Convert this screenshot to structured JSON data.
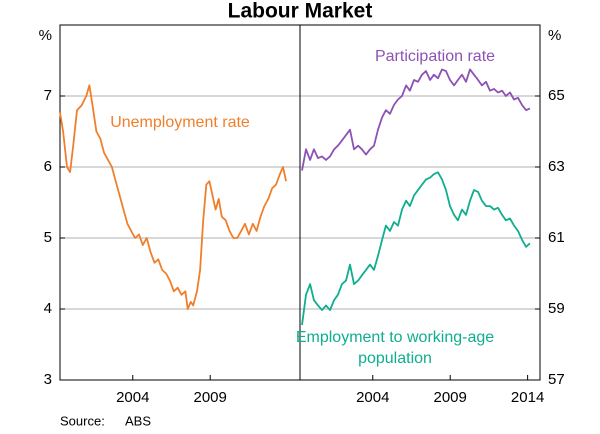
{
  "title": "Labour Market",
  "source_label": "Source:",
  "source": "ABS",
  "chart_data": [
    {
      "type": "line",
      "y_unit": "%",
      "xlim": [
        1999.3,
        2014.8
      ],
      "xticks": [
        2004,
        2009
      ],
      "ylim": [
        3,
        8
      ],
      "yticks": [
        3,
        4,
        5,
        6,
        7
      ],
      "grid": true,
      "axis_side": "left",
      "x": [
        1999.3,
        1999.5,
        1999.75,
        1999.95,
        2000.15,
        2000.4,
        2000.7,
        2001.0,
        2001.2,
        2001.4,
        2001.65,
        2001.9,
        2002.15,
        2002.4,
        2002.65,
        2002.9,
        2003.15,
        2003.4,
        2003.65,
        2003.9,
        2004.15,
        2004.4,
        2004.65,
        2004.9,
        2005.15,
        2005.4,
        2005.65,
        2005.9,
        2006.15,
        2006.4,
        2006.65,
        2006.9,
        2007.15,
        2007.4,
        2007.55,
        2007.75,
        2007.9,
        2008.15,
        2008.35,
        2008.55,
        2008.75,
        2008.95,
        2009.15,
        2009.35,
        2009.55,
        2009.75,
        2010.0,
        2010.25,
        2010.5,
        2010.75,
        2011.0,
        2011.25,
        2011.5,
        2011.75,
        2012.0,
        2012.25,
        2012.5,
        2012.75,
        2013.0,
        2013.25,
        2013.5,
        2013.7,
        2013.9
      ],
      "series": [
        {
          "name": "Unemployment rate",
          "color": "#f07f2c",
          "values": [
            6.77,
            6.5,
            6.0,
            5.93,
            6.3,
            6.8,
            6.87,
            7.0,
            7.15,
            6.87,
            6.5,
            6.4,
            6.2,
            6.1,
            6.0,
            5.8,
            5.6,
            5.4,
            5.2,
            5.1,
            5.0,
            5.05,
            4.9,
            5.0,
            4.8,
            4.65,
            4.7,
            4.55,
            4.5,
            4.4,
            4.25,
            4.3,
            4.2,
            4.25,
            4.0,
            4.1,
            4.05,
            4.25,
            4.55,
            5.25,
            5.75,
            5.8,
            5.6,
            5.4,
            5.55,
            5.3,
            5.25,
            5.1,
            5.0,
            5.0,
            5.1,
            5.2,
            5.05,
            5.2,
            5.1,
            5.3,
            5.45,
            5.55,
            5.7,
            5.75,
            5.9,
            6.0,
            5.8
          ]
        }
      ]
    },
    {
      "type": "line",
      "y_unit": "%",
      "xlim": [
        1999.3,
        2014.8
      ],
      "xticks": [
        2004,
        2009,
        2014
      ],
      "ylim": [
        57,
        67
      ],
      "yticks": [
        57,
        59,
        61,
        63,
        65
      ],
      "grid": true,
      "axis_side": "right",
      "x": [
        1999.43,
        1999.69,
        1999.95,
        2000.2,
        2000.46,
        2000.72,
        2000.98,
        2001.24,
        2001.5,
        2001.75,
        2002.01,
        2002.27,
        2002.53,
        2002.79,
        2003.05,
        2003.3,
        2003.56,
        2003.82,
        2004.08,
        2004.34,
        2004.6,
        2004.85,
        2005.11,
        2005.37,
        2005.63,
        2005.89,
        2006.15,
        2006.4,
        2006.66,
        2006.92,
        2007.18,
        2007.44,
        2007.7,
        2007.95,
        2008.21,
        2008.47,
        2008.73,
        2008.99,
        2009.25,
        2009.5,
        2009.76,
        2010.02,
        2010.28,
        2010.54,
        2010.8,
        2011.05,
        2011.31,
        2011.57,
        2011.83,
        2012.09,
        2012.35,
        2012.6,
        2012.86,
        2013.12,
        2013.38,
        2013.64,
        2013.9,
        2014.15
      ],
      "series": [
        {
          "name": "Participation rate",
          "color": "#8c52b5",
          "values": [
            62.9,
            63.5,
            63.2,
            63.5,
            63.25,
            63.3,
            63.2,
            63.3,
            63.5,
            63.6,
            63.75,
            63.9,
            64.05,
            63.5,
            63.6,
            63.5,
            63.35,
            63.5,
            63.6,
            64.05,
            64.4,
            64.6,
            64.5,
            64.75,
            64.9,
            65.0,
            65.3,
            65.15,
            65.45,
            65.4,
            65.6,
            65.7,
            65.45,
            65.6,
            65.5,
            65.75,
            65.7,
            65.45,
            65.3,
            65.45,
            65.6,
            65.4,
            65.75,
            65.6,
            65.45,
            65.3,
            65.4,
            65.15,
            65.2,
            65.1,
            65.15,
            65.0,
            65.1,
            64.9,
            64.95,
            64.75,
            64.6,
            64.65
          ]
        },
        {
          "name": "Employment to working-age population",
          "color": "#0fae8e",
          "values": [
            58.55,
            59.4,
            59.7,
            59.25,
            59.1,
            58.97,
            59.1,
            58.97,
            59.25,
            59.4,
            59.7,
            59.8,
            60.25,
            59.7,
            59.8,
            59.95,
            60.1,
            60.25,
            60.1,
            60.5,
            60.95,
            61.35,
            61.2,
            61.45,
            61.35,
            61.8,
            62.05,
            61.9,
            62.2,
            62.35,
            62.5,
            62.65,
            62.7,
            62.8,
            62.85,
            62.65,
            62.35,
            61.9,
            61.65,
            61.5,
            61.8,
            61.65,
            62.05,
            62.35,
            62.3,
            62.05,
            61.9,
            61.9,
            61.8,
            61.85,
            61.65,
            61.5,
            61.55,
            61.35,
            61.2,
            60.95,
            60.75,
            60.85
          ]
        }
      ]
    }
  ]
}
